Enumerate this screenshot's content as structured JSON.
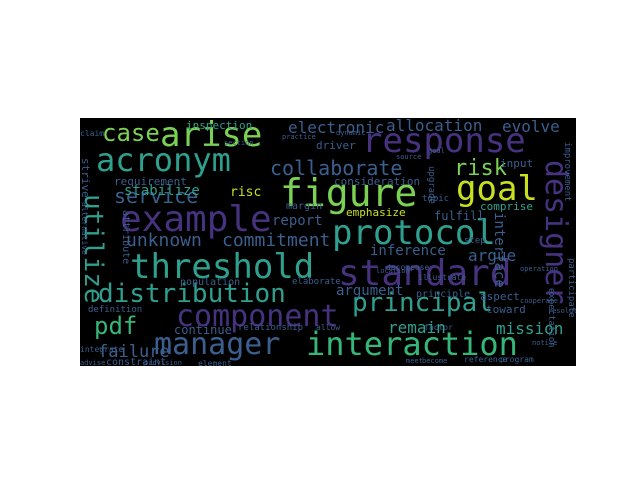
{
  "palette": {
    "background": "#000000",
    "teal": "#2fa08f",
    "green": "#7ad152",
    "lime": "#c8e020",
    "blue": "#3b5f8e",
    "purple": "#46327e",
    "indigo": "#3e4a89",
    "seafoam": "#35b779",
    "yellow": "#fde725"
  },
  "words": [
    {
      "text": "case",
      "color": "#7ad152"
    },
    {
      "text": "arise",
      "color": "#7ad152"
    },
    {
      "text": "response",
      "color": "#46327e"
    },
    {
      "text": "acronym",
      "color": "#2fa08f"
    },
    {
      "text": "collaborate",
      "color": "#3b5f8e"
    },
    {
      "text": "risk",
      "color": "#7ad152"
    },
    {
      "text": "goal",
      "color": "#c8e020"
    },
    {
      "text": "figure",
      "color": "#7ad152"
    },
    {
      "text": "service",
      "color": "#3b5f8e"
    },
    {
      "text": "example",
      "color": "#46327e"
    },
    {
      "text": "protocol",
      "color": "#2fa08f"
    },
    {
      "text": "designer",
      "color": "#46327e"
    },
    {
      "text": "threshold",
      "color": "#2fa08f"
    },
    {
      "text": "standard",
      "color": "#46327e"
    },
    {
      "text": "distribution",
      "color": "#2fa08f"
    },
    {
      "text": "principal",
      "color": "#2fa08f"
    },
    {
      "text": "component",
      "color": "#46327e"
    },
    {
      "text": "pdf",
      "color": "#35b779"
    },
    {
      "text": "manager",
      "color": "#3b5f8e"
    },
    {
      "text": "interaction",
      "color": "#35b779"
    },
    {
      "text": "utilize",
      "color": "#2fa08f"
    },
    {
      "text": "unknown",
      "color": "#3b5f8e"
    },
    {
      "text": "commitment",
      "color": "#3b5f8e"
    },
    {
      "text": "allocation",
      "color": "#3b5f8e"
    },
    {
      "text": "evolve",
      "color": "#3b5f8e"
    },
    {
      "text": "electronic",
      "color": "#3b5f8e"
    },
    {
      "text": "inspection",
      "color": "#2fa08f"
    },
    {
      "text": "stabilize",
      "color": "#2fa08f"
    },
    {
      "text": "requirement",
      "color": "#3b5f8e"
    },
    {
      "text": "risc",
      "color": "#c8e020"
    },
    {
      "text": "report",
      "color": "#3b5f8e"
    },
    {
      "text": "inference",
      "color": "#3b5f8e"
    },
    {
      "text": "argue",
      "color": "#3b5f8e"
    },
    {
      "text": "interface",
      "color": "#3b5f8e"
    },
    {
      "text": "argument",
      "color": "#3b5f8e"
    },
    {
      "text": "remain",
      "color": "#2fa08f"
    },
    {
      "text": "mission",
      "color": "#2fa08f"
    },
    {
      "text": "failure",
      "color": "#3b5f8e"
    },
    {
      "text": "continue",
      "color": "#3b5f8e"
    },
    {
      "text": "emphasize",
      "color": "#c8e020"
    },
    {
      "text": "fulfill",
      "color": "#3b5f8e"
    },
    {
      "text": "comprise",
      "color": "#2fa08f"
    },
    {
      "text": "consideration",
      "color": "#3b5f8e"
    },
    {
      "text": "driver",
      "color": "#3b5f8e"
    },
    {
      "text": "input",
      "color": "#3b5f8e"
    },
    {
      "text": "aspect",
      "color": "#3b5f8e"
    },
    {
      "text": "toward",
      "color": "#3b5f8e"
    },
    {
      "text": "principle",
      "color": "#3b5f8e"
    },
    {
      "text": "step",
      "color": "#3b5f8e"
    },
    {
      "text": "topic",
      "color": "#3b5f8e"
    },
    {
      "text": "upgrade",
      "color": "#3b5f8e"
    },
    {
      "text": "margin",
      "color": "#3b5f8e"
    },
    {
      "text": "attribute",
      "color": "#3b5f8e"
    },
    {
      "text": "population",
      "color": "#3b5f8e"
    },
    {
      "text": "relationship",
      "color": "#3b5f8e"
    },
    {
      "text": "constraint",
      "color": "#3b5f8e"
    },
    {
      "text": "definition",
      "color": "#3b5f8e"
    },
    {
      "text": "decompose",
      "color": "#3b5f8e"
    },
    {
      "text": "illustrate",
      "color": "#3b5f8e"
    },
    {
      "text": "elaborate",
      "color": "#3b5f8e"
    },
    {
      "text": "factor",
      "color": "#3b5f8e"
    },
    {
      "text": "strive",
      "color": "#3b5f8e"
    },
    {
      "text": "claim",
      "color": "#3b5f8e"
    },
    {
      "text": "improvement",
      "color": "#3b5f8e"
    },
    {
      "text": "participate",
      "color": "#3b5f8e"
    },
    {
      "text": "expectation",
      "color": "#3b5f8e"
    },
    {
      "text": "alternative",
      "color": "#3b5f8e"
    },
    {
      "text": "integrate",
      "color": "#3b5f8e"
    },
    {
      "text": "reference",
      "color": "#3b5f8e"
    },
    {
      "text": "program",
      "color": "#3b5f8e"
    },
    {
      "text": "dynamic",
      "color": "#3b5f8e"
    },
    {
      "text": "section",
      "color": "#3b5f8e"
    },
    {
      "text": "location",
      "color": "#3b5f8e"
    },
    {
      "text": "allow",
      "color": "#3b5f8e"
    },
    {
      "text": "goal",
      "color": "#3b5f8e"
    },
    {
      "text": "operation",
      "color": "#3b5f8e"
    },
    {
      "text": "practice",
      "color": "#3b5f8e"
    },
    {
      "text": "source",
      "color": "#3b5f8e"
    },
    {
      "text": "element",
      "color": "#3b5f8e"
    },
    {
      "text": "provision",
      "color": "#3b5f8e"
    },
    {
      "text": "advise",
      "color": "#3b5f8e"
    },
    {
      "text": "meet",
      "color": "#3b5f8e"
    },
    {
      "text": "become",
      "color": "#3b5f8e"
    },
    {
      "text": "notice",
      "color": "#3b5f8e"
    },
    {
      "text": "cooperate",
      "color": "#3b5f8e"
    },
    {
      "text": "resolution",
      "color": "#3b5f8e"
    }
  ]
}
